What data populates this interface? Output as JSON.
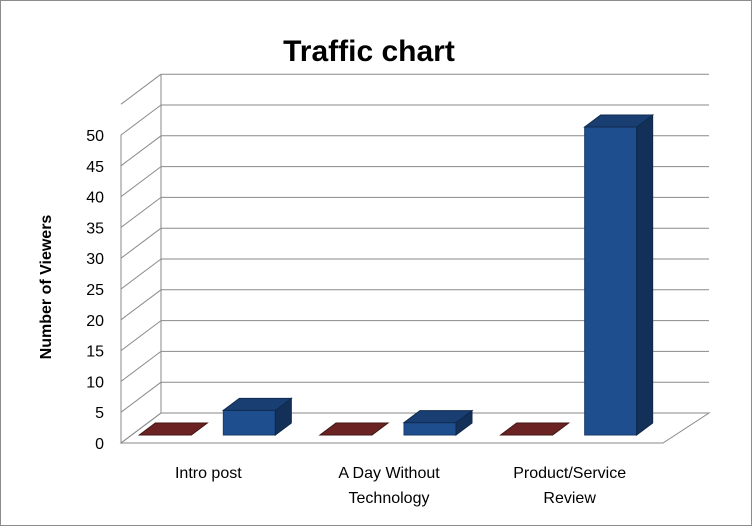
{
  "chart_data": {
    "type": "bar",
    "title": "Traffic chart",
    "xlabel": "",
    "ylabel": "Number of Viewers",
    "categories": [
      "Intro post",
      "A Day Without Technology",
      "Product/Service Review"
    ],
    "category_label_lines": [
      [
        "Intro post"
      ],
      [
        "A Day Without",
        "Technology"
      ],
      [
        "Product/Service",
        "Review"
      ]
    ],
    "series": [
      {
        "values": [
          0,
          0,
          0
        ],
        "color": "#6b2222"
      },
      {
        "values": [
          4,
          2,
          50
        ],
        "color": "#1f4e8f"
      }
    ],
    "ylim": [
      0,
      50
    ],
    "yticks": [
      0,
      5,
      10,
      15,
      20,
      25,
      30,
      35,
      40,
      45,
      50
    ],
    "grid": true,
    "legend": "none",
    "style": "3d-column"
  }
}
